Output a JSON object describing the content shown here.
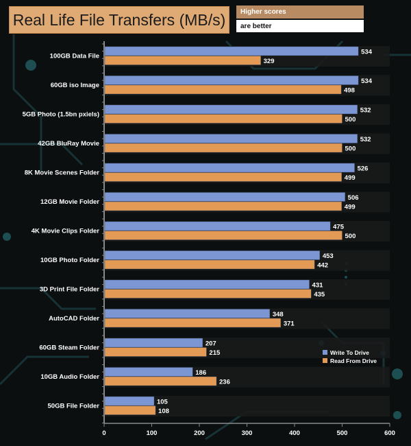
{
  "header": {
    "title": "Real Life File Transfers (MB/s)",
    "note_line1": "Higher scores",
    "note_line2": "are better"
  },
  "colors": {
    "write": "#7c96d4",
    "read": "#e39a55",
    "title_bg": "#e0aa75",
    "note_bg": "#b88b62",
    "axis": "#8a8a8a"
  },
  "chart_data": {
    "type": "bar",
    "orientation": "horizontal",
    "categories": [
      "100GB Data File",
      "60GB iso Image",
      "5GB Photo (1.5bn pxiels)",
      "42GB BluRay Movie",
      "8K Movie Scenes Folder",
      "12GB Movie Folder",
      "4K Movie Clips Folder",
      "10GB Photo Folder",
      "3D Print File Folder",
      "AutoCAD Folder",
      "60GB Steam Folder",
      "10GB Audio Folder",
      "50GB File Folder"
    ],
    "series": [
      {
        "name": "Write To  Drive",
        "values": [
          534,
          534,
          532,
          532,
          526,
          506,
          475,
          453,
          431,
          348,
          207,
          186,
          105
        ]
      },
      {
        "name": "Read From  Drive",
        "values": [
          329,
          498,
          500,
          500,
          499,
          499,
          500,
          442,
          435,
          371,
          215,
          236,
          108
        ]
      }
    ],
    "xlim": [
      0,
      600
    ],
    "xticks": [
      0,
      100,
      200,
      300,
      400,
      500,
      600
    ],
    "legend_position": "right",
    "grid": false
  }
}
